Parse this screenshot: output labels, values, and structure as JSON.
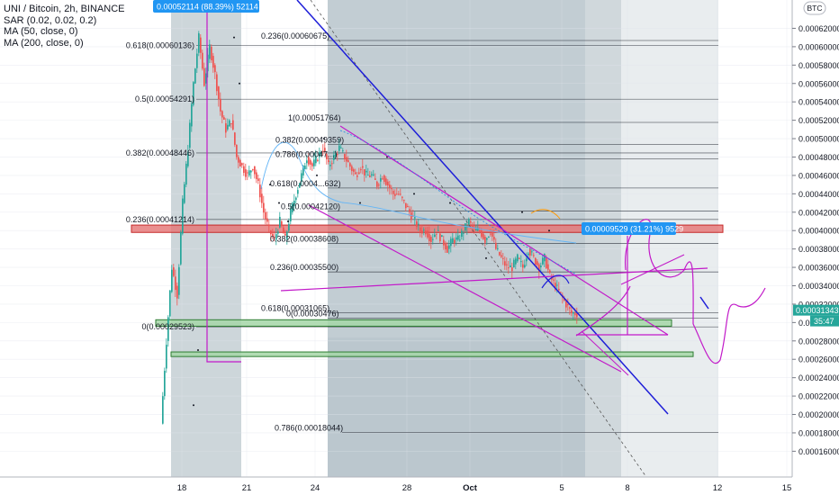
{
  "legend": {
    "symbol": "UNI / Bitcoin, 2h, BINANCE",
    "indicators": [
      "SAR (0.02, 0.02, 0.2)",
      "MA (50, close, 0)",
      "MA (200, close, 0)"
    ]
  },
  "chart_data": {
    "type": "candlestick",
    "symbol": "UNI / Bitcoin",
    "timeframe": "2h",
    "exchange": "BINANCE",
    "x_ticks": [
      "18",
      "21",
      "24",
      "28",
      "Oct",
      "5",
      "8",
      "12",
      "15"
    ],
    "y_ticks": [
      "0.00062000",
      "0.00060000",
      "0.00058000",
      "0.00056000",
      "0.00054000",
      "0.00052000",
      "0.00050000",
      "0.00048000",
      "0.00046000",
      "0.00044000",
      "0.00042000",
      "0.00040000",
      "0.00038000",
      "0.00036000",
      "0.00034000",
      "0.00032000",
      "0.00030000",
      "0.00028000",
      "0.00026000",
      "0.00024000",
      "0.00022000",
      "0.00020000",
      "0.00018000",
      "0.00016000"
    ],
    "ylim": [
      0.000158,
      0.000639
    ],
    "currency_badge": "BTC",
    "last_price_label": "0.00031343",
    "countdown_label": "35:47",
    "fib_left": [
      {
        "label": "0.618(0.00060136)",
        "value": 0.00060136
      },
      {
        "label": "0.5(0.00054291)",
        "value": 0.00054291
      },
      {
        "label": "0.382(0.00048446)",
        "value": 0.00048446
      },
      {
        "label": "0.236(0.00041214)",
        "value": 0.00041214
      },
      {
        "label": "0(0.00029523)",
        "value": 0.00029523
      }
    ],
    "fib_mid": [
      {
        "label": "0.236(0.00060675)",
        "value": 0.00060675
      },
      {
        "label": "1(0.00051764)",
        "value": 0.00051764
      },
      {
        "label": "0.382(0.00049359)",
        "value": 0.00049359
      },
      {
        "label": "0.786(0.00047...)",
        "value": 0.000478
      },
      {
        "label": "0.618(0.0004...632)",
        "value": 0.00044632
      },
      {
        "label": "0.5(0.00042120)",
        "value": 0.0004212
      },
      {
        "label": "0.382(0.00038608)",
        "value": 0.00038608
      },
      {
        "label": "0.236(0.00035500)",
        "value": 0.000355
      },
      {
        "label": "0.618(0.00031065)",
        "value": 0.00031065
      },
      {
        "label": "0(0.00030476)",
        "value": 0.00030476
      },
      {
        "label": "0.786(0.00018044)",
        "value": 0.00018044
      }
    ],
    "measure_top": "0.00052114 (88.39%) 52114",
    "measure_right": "0.00009529 (31.21%) 9529",
    "resistance_zone": [
      0.000398,
      0.000406
    ],
    "support_zones": [
      [
        0.000296,
        0.000303
      ],
      [
        0.000263,
        0.000268
      ]
    ],
    "colors": {
      "up": "#26a69a",
      "down": "#ef5350",
      "fib": "#131722",
      "trend": "#1e1ed8",
      "channel": "#c21ac9",
      "zone_red": "#e57373",
      "zone_green": "#a5d6a7",
      "shade": "#90a4ae"
    }
  }
}
